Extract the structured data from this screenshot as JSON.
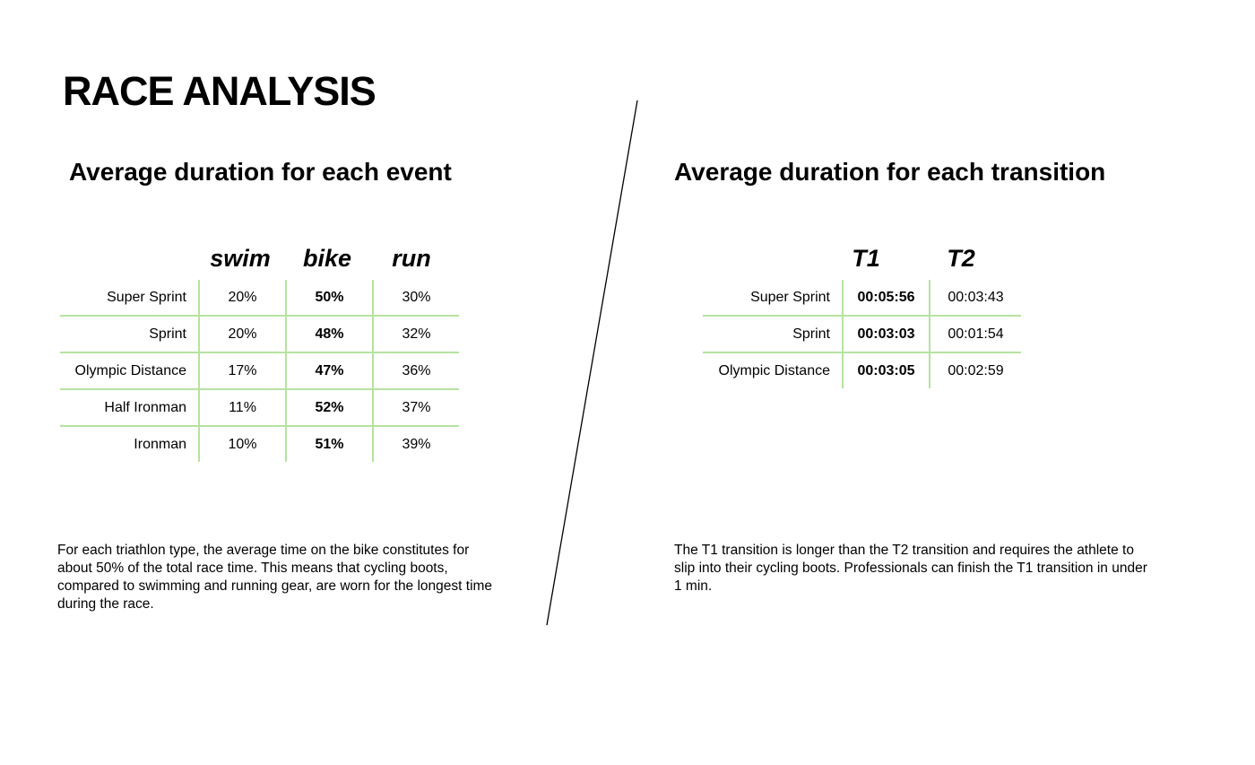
{
  "title": "RACE ANALYSIS",
  "events": {
    "heading": "Average duration for each event",
    "columns": [
      "swim",
      "bike",
      "run"
    ],
    "rows": [
      {
        "label": "Super Sprint",
        "values": [
          "20%",
          "50%",
          "30%"
        ]
      },
      {
        "label": "Sprint",
        "values": [
          "20%",
          "48%",
          "32%"
        ]
      },
      {
        "label": "Olympic Distance",
        "values": [
          "17%",
          "47%",
          "36%"
        ]
      },
      {
        "label": "Half Ironman",
        "values": [
          "11%",
          "52%",
          "37%"
        ]
      },
      {
        "label": "Ironman",
        "values": [
          "10%",
          "51%",
          "39%"
        ]
      }
    ],
    "description": "For each triathlon type, the average time on the bike constitutes for about 50% of the total race time. This means that cycling boots, compared to swimming and running gear, are worn for the longest time during the race."
  },
  "transitions": {
    "heading": "Average duration for each transition",
    "columns": [
      "T1",
      "T2"
    ],
    "rows": [
      {
        "label": "Super Sprint",
        "values": [
          "00:05:56",
          "00:03:43"
        ]
      },
      {
        "label": "Sprint",
        "values": [
          "00:03:03",
          "00:01:54"
        ]
      },
      {
        "label": "Olympic Distance",
        "values": [
          "00:03:05",
          "00:02:59"
        ]
      }
    ],
    "description": "The T1 transition is longer than the T2 transition and requires the athlete to slip into their cycling boots. Professionals can finish the T1 transition in under 1 min."
  },
  "colors": {
    "grid_line": "#b6e3a0",
    "text": "#000000",
    "background": "#ffffff"
  }
}
